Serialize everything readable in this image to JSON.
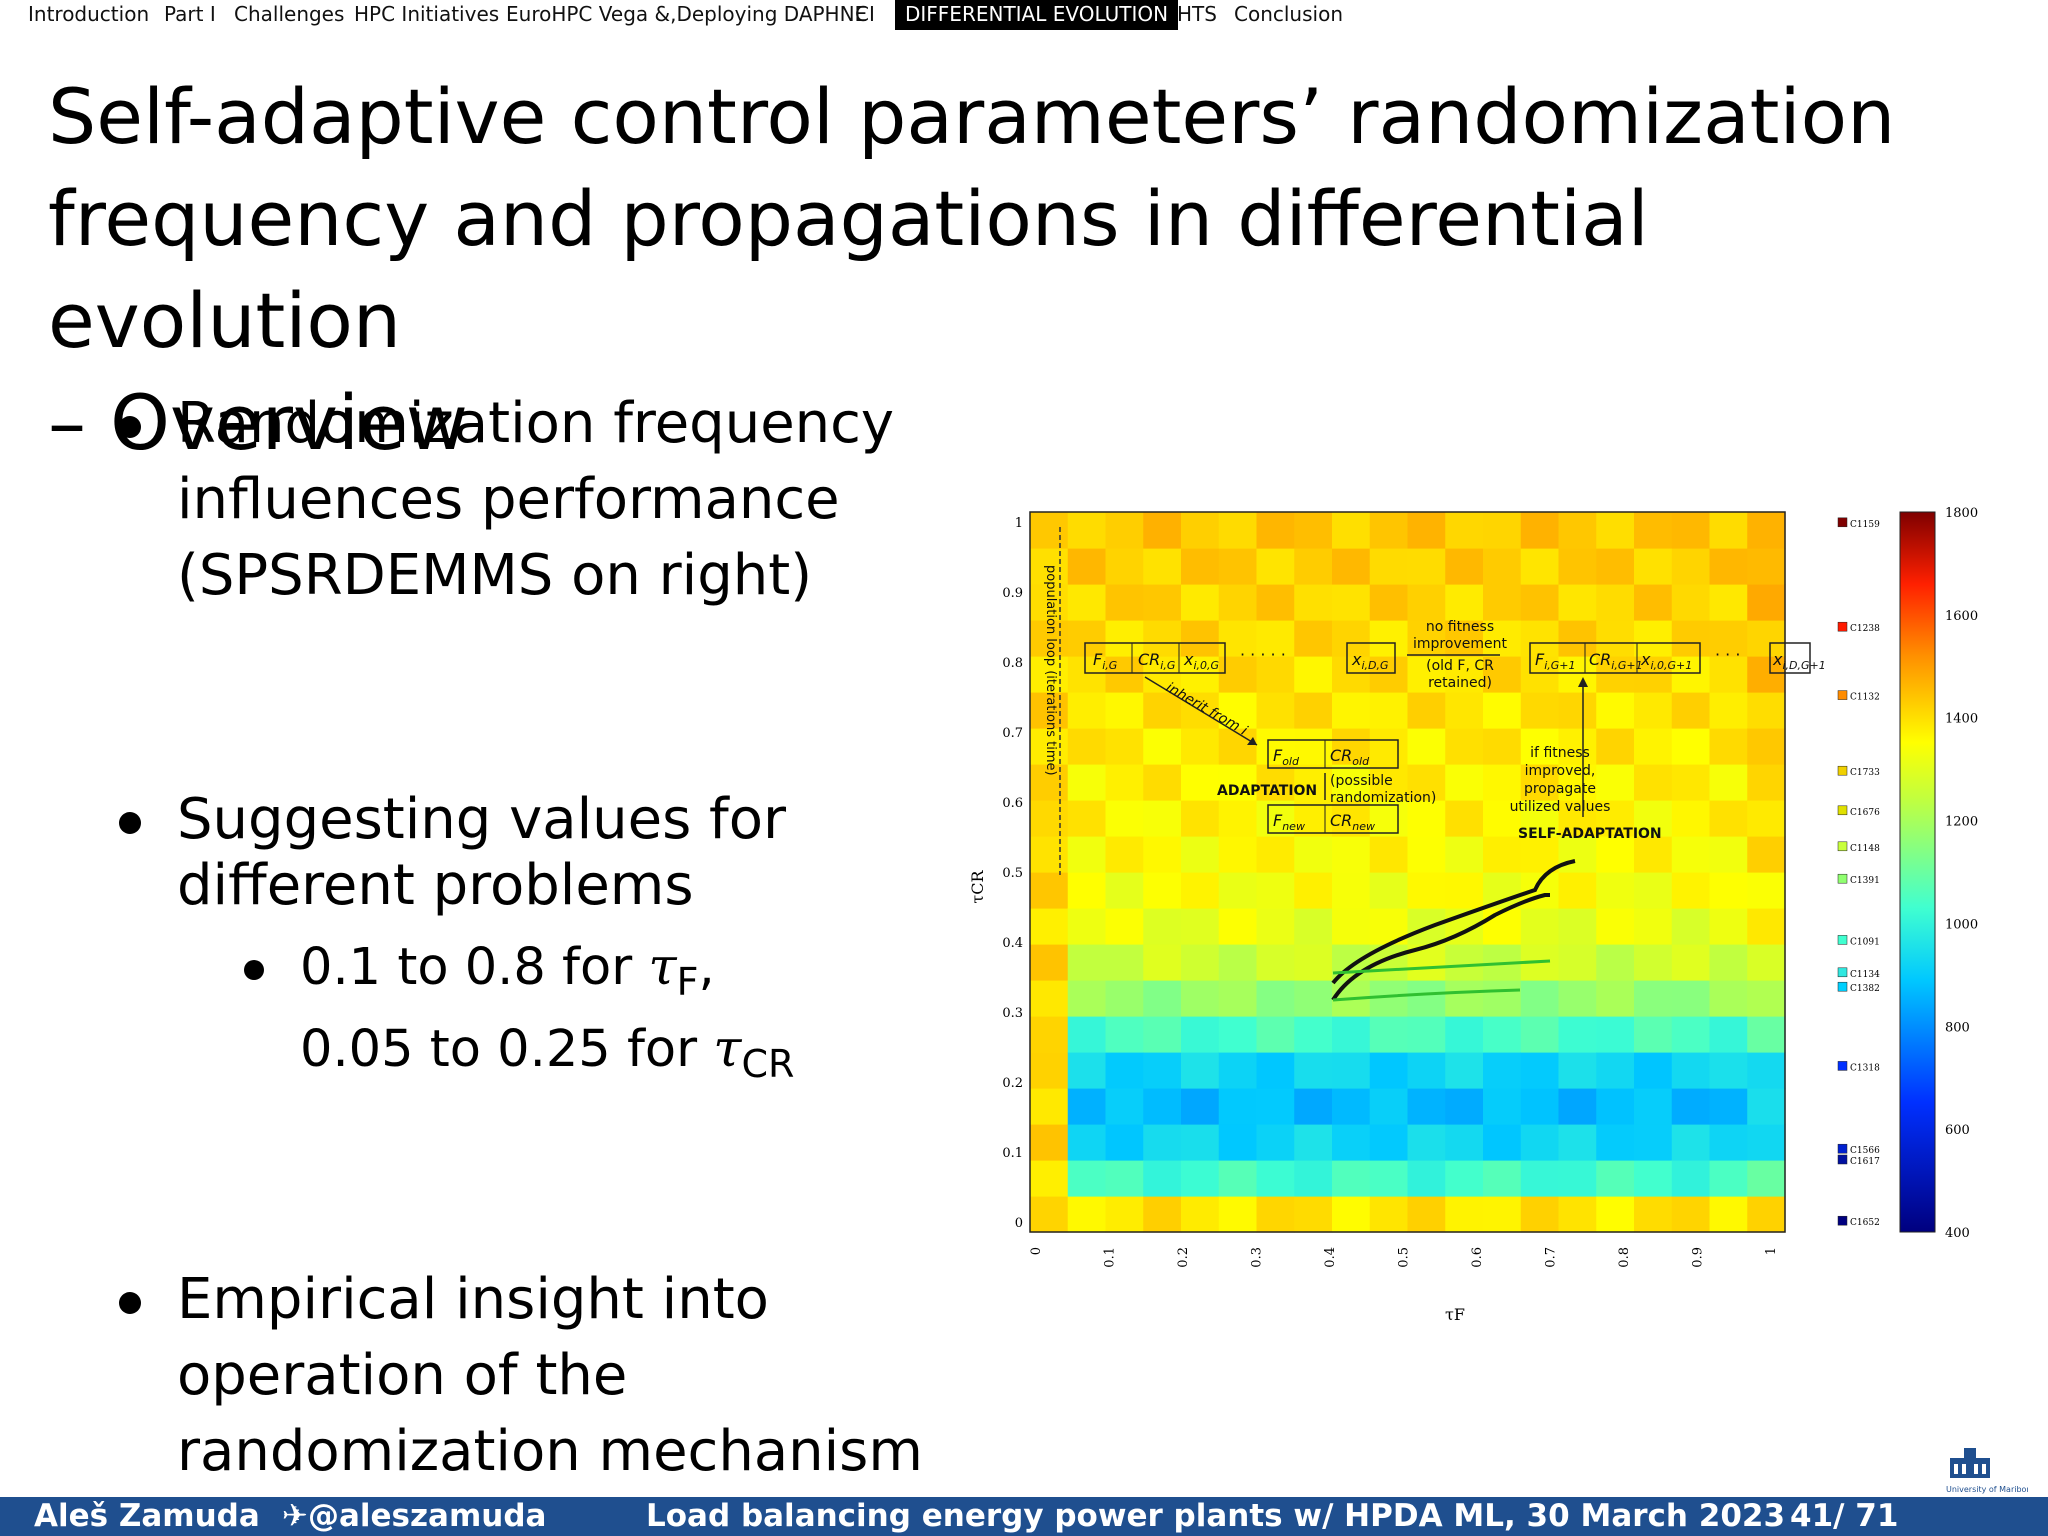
{
  "nav": {
    "items": [
      "Introduction",
      "Part I",
      "Challenges",
      "HPC Initiatives",
      "EuroHPC Vega &,Deploying DAPHNE",
      "CI",
      "DIFFERENTIAL EVOLUTION",
      "HTS",
      "Conclusion"
    ],
    "active_index": 6
  },
  "slide": {
    "title_lines": [
      "Self-adaptive control parameters’ randomization",
      "frequency and propagations in differential evolution",
      "– Overview"
    ],
    "bullets": [
      {
        "lines": [
          "Randomization frequency",
          "influences performance",
          "(SPSRDEMMS on right)"
        ]
      },
      {
        "lines": [
          "Suggesting values for",
          "different problems"
        ]
      },
      {
        "lines": [
          "Empirical insight into",
          "operation of the",
          "randomization mechanism"
        ]
      }
    ],
    "sub_bullet": {
      "line1_text": "0.1 to 0.8 for ",
      "line1_symbol": "τ",
      "line1_sub": "F",
      "line1_end": ",",
      "line2_text": "0.05 to 0.25 for ",
      "line2_symbol": "τ",
      "line2_sub": "CR"
    }
  },
  "chart_data": {
    "type": "heatmap",
    "xlabel": "τF",
    "ylabel": "τCR",
    "xlim": [
      0,
      1
    ],
    "ylim": [
      0,
      1
    ],
    "x_ticks": [
      "0",
      "0.1",
      "0.2",
      "0.3",
      "0.4",
      "0.5",
      "0.6",
      "0.7",
      "0.8",
      "0.9",
      "1"
    ],
    "y_ticks": [
      "0",
      "0.1",
      "0.2",
      "0.3",
      "0.4",
      "0.5",
      "0.6",
      "0.7",
      "0.8",
      "0.9",
      "1"
    ],
    "colorbar": {
      "min": 400,
      "max": 1800,
      "ticks": [
        "400",
        "600",
        "800",
        "1000",
        "1200",
        "1400",
        "1600",
        "1800"
      ]
    },
    "annotations": {
      "population_loop": "population loop (iterations time)",
      "no_fitness": [
        "no fitness",
        "improvement",
        "(old F, CR",
        "retained)"
      ],
      "inherit": "inherit from i",
      "adaptation": "ADAPTATION",
      "possible": [
        "(possible",
        "randomization)"
      ],
      "if_fitness": [
        "if fitness",
        "improved,",
        "propagate",
        "utilized values"
      ],
      "self_adaptation": "SELF-ADAPTATION"
    },
    "legend_labels": [
      "C1159",
      "C1238",
      "C1132",
      "C1733",
      "C1676",
      "C1148",
      "C1391",
      "C1091",
      "C1134",
      "C1382",
      "C1318",
      "C1566",
      "C1617",
      "C1652"
    ]
  },
  "footer": {
    "author": "Aleš Zamuda",
    "twitter": "@aleszamuda",
    "talk": "Load balancing energy power plants w/ HPDA ML, 30 March 2023",
    "page": "41/ 71"
  },
  "logo": {
    "text": "University of Maribor"
  },
  "colors": {
    "footer_bg": "#1f4f8f",
    "nav_active_bg": "#000000"
  }
}
